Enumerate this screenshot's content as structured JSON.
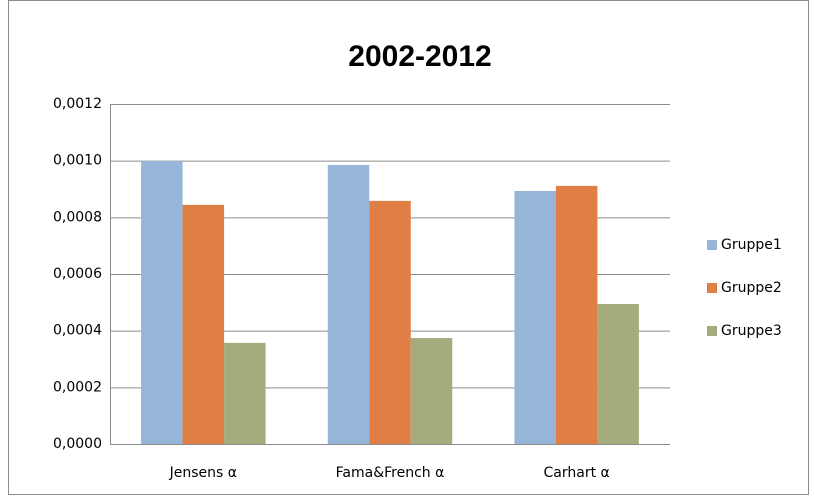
{
  "chart_data": {
    "type": "bar",
    "title": "2002-2012",
    "categories": [
      "Jensens α",
      "Fama&French α",
      "Carhart α"
    ],
    "series": [
      {
        "name": "Gruppe1",
        "color": "#95b6d8",
        "values": [
          0.000999,
          0.000985,
          0.000893
        ]
      },
      {
        "name": "Gruppe2",
        "color": "#e07f45",
        "values": [
          0.000844,
          0.000858,
          0.000911
        ]
      },
      {
        "name": "Gruppe3",
        "color": "#a6ab7d",
        "values": [
          0.000357,
          0.000374,
          0.000494
        ]
      }
    ],
    "ylim": [
      0,
      0.0012
    ],
    "yticks": [
      {
        "value": 0,
        "label": "0,0000"
      },
      {
        "value": 0.0002,
        "label": "0,0002"
      },
      {
        "value": 0.0004,
        "label": "0,0004"
      },
      {
        "value": 0.0006,
        "label": "0,0006"
      },
      {
        "value": 0.0008,
        "label": "0,0008"
      },
      {
        "value": 0.001,
        "label": "0,0010"
      },
      {
        "value": 0.0012,
        "label": "0,0012"
      }
    ],
    "grid": true,
    "legend": "right"
  }
}
